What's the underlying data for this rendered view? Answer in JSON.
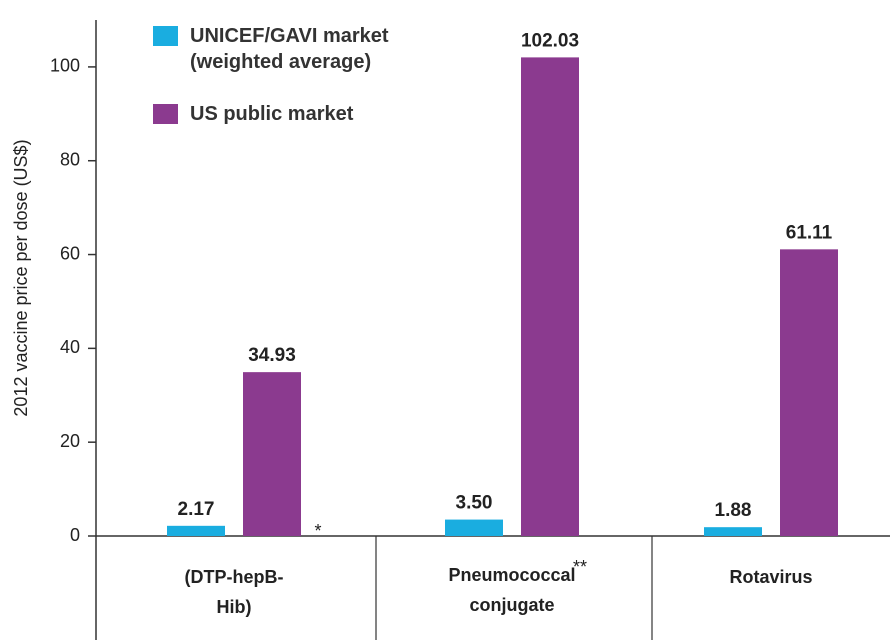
{
  "chart_data": {
    "type": "bar",
    "y_label": "2012 vaccine price per dose (US$)",
    "categories": [
      "(DTP-hepB-Hib)",
      "Pneumococcal conjugate",
      "Rotavirus"
    ],
    "series": [
      {
        "name": "UNICEF/GAVI market (weighted average)",
        "color": "#1aade0",
        "values": [
          2.17,
          3.5,
          1.88
        ],
        "value_labels": [
          "2.17",
          "3.50",
          "1.88"
        ]
      },
      {
        "name": "US public market",
        "color": "#8b3a8f",
        "values": [
          34.93,
          102.03,
          61.11
        ],
        "value_labels": [
          "34.93",
          "102.03",
          "61.11"
        ]
      }
    ],
    "annotations": [
      "*",
      "**"
    ],
    "ylim": [
      0,
      110
    ],
    "yticks": [
      0,
      20,
      40,
      60,
      80,
      100
    ],
    "legend": "top-left"
  }
}
